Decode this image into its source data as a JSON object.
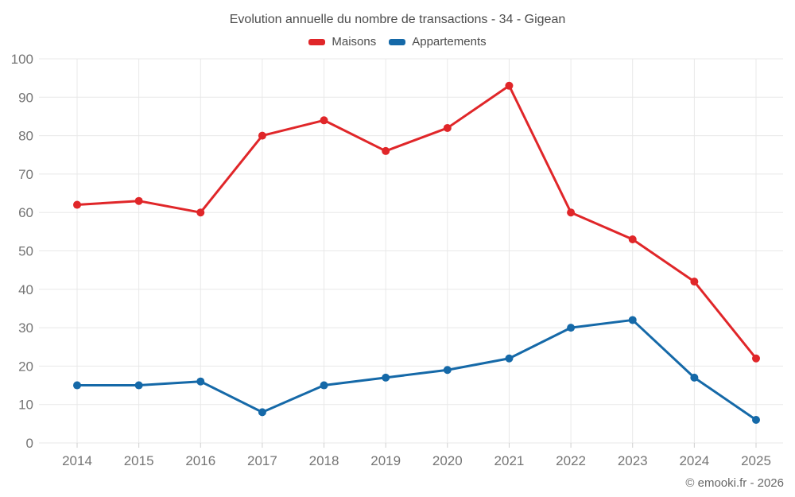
{
  "title": "Evolution annuelle du nombre de transactions - 34 - Gigean",
  "legend": [
    {
      "label": "Maisons",
      "color": "#e02629"
    },
    {
      "label": "Appartements",
      "color": "#1569a8"
    }
  ],
  "footer": "© emooki.fr - 2026",
  "colors": {
    "maisons": "#e02629",
    "appartements": "#1569a8",
    "grid": "#e8e8e8",
    "tick": "#cfcfcf",
    "axis_text": "#757575",
    "title_text": "#4c4c4c"
  },
  "chart_data": {
    "type": "line",
    "title": "Evolution annuelle du nombre de transactions - 34 - Gigean",
    "xlabel": "",
    "ylabel": "",
    "x": [
      2014,
      2015,
      2016,
      2017,
      2018,
      2019,
      2020,
      2021,
      2022,
      2023,
      2024,
      2025
    ],
    "series": [
      {
        "name": "Maisons",
        "color": "#e02629",
        "values": [
          62,
          63,
          60,
          80,
          84,
          76,
          82,
          93,
          60,
          53,
          42,
          22
        ]
      },
      {
        "name": "Appartements",
        "color": "#1569a8",
        "values": [
          15,
          15,
          16,
          8,
          15,
          17,
          19,
          22,
          30,
          32,
          17,
          6
        ]
      }
    ],
    "ylim": [
      0,
      100
    ],
    "ytick_step": 10,
    "yticks": [
      0,
      10,
      20,
      30,
      40,
      50,
      60,
      70,
      80,
      90,
      100
    ],
    "grid": true,
    "legend_position": "top"
  }
}
